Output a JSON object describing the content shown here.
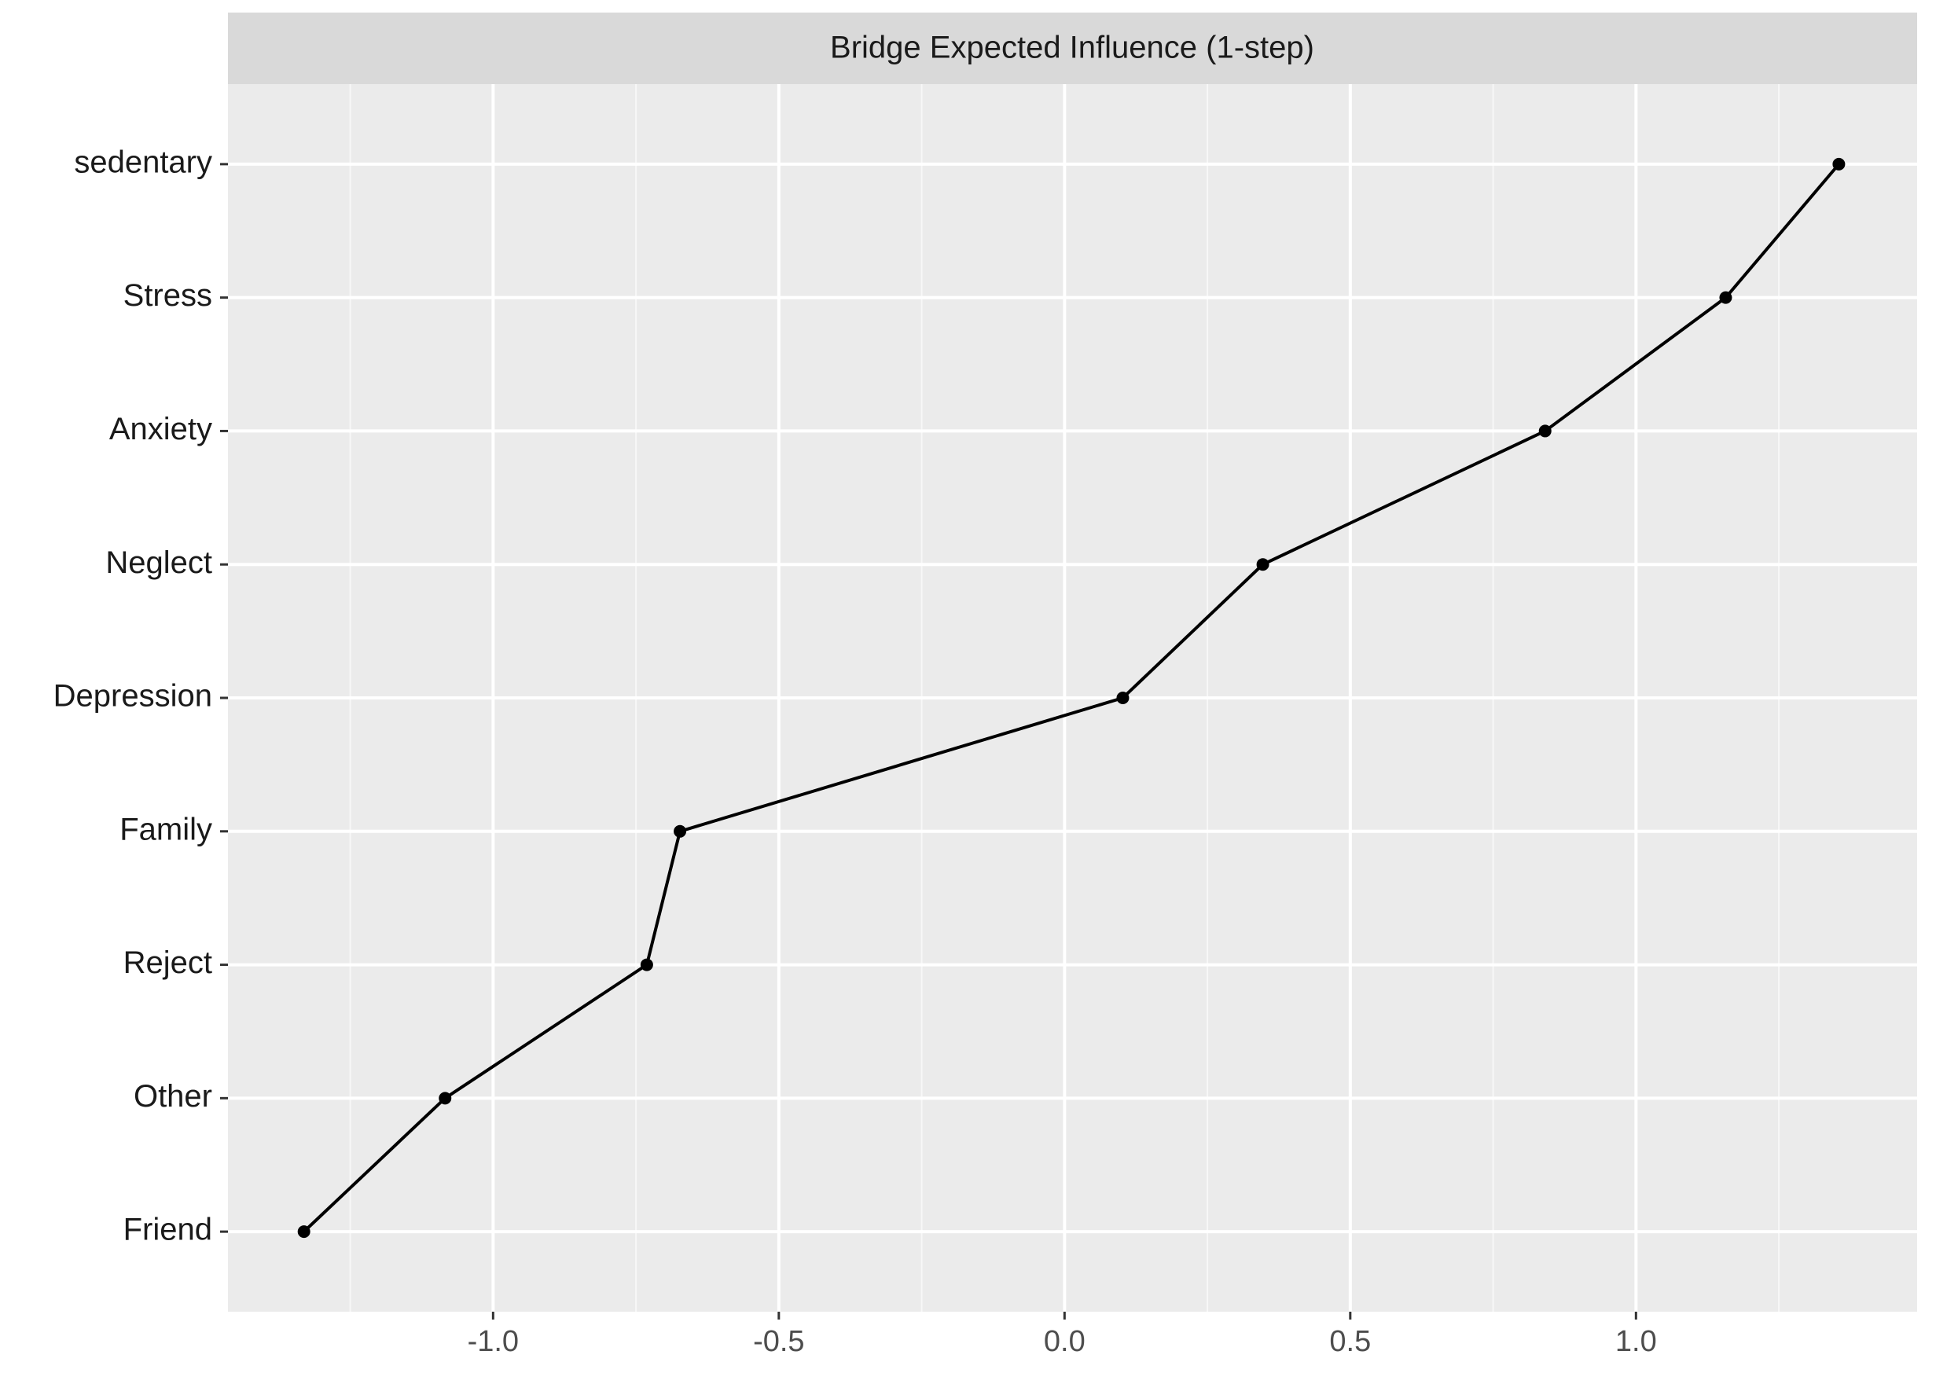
{
  "chart_data": {
    "type": "line",
    "title": "Bridge Expected Influence (1-step)",
    "categories": [
      "sedentary",
      "Stress",
      "Anxiety",
      "Neglect",
      "Depression",
      "Family",
      "Reject",
      "Other",
      "Friend"
    ],
    "values": [
      1.355,
      1.157,
      0.841,
      0.347,
      0.102,
      -0.673,
      -0.731,
      -1.084,
      -1.331
    ],
    "color": "#000000",
    "xlim": [
      -1.464,
      1.492
    ],
    "xticks": [
      {
        "value": -1.0,
        "label": "-1.0"
      },
      {
        "value": -0.5,
        "label": "-0.5"
      },
      {
        "value": 0,
        "label": "0.0"
      },
      {
        "value": 0.5,
        "label": "0.5"
      },
      {
        "value": 1.0,
        "label": "1.0"
      }
    ],
    "grid": true
  }
}
